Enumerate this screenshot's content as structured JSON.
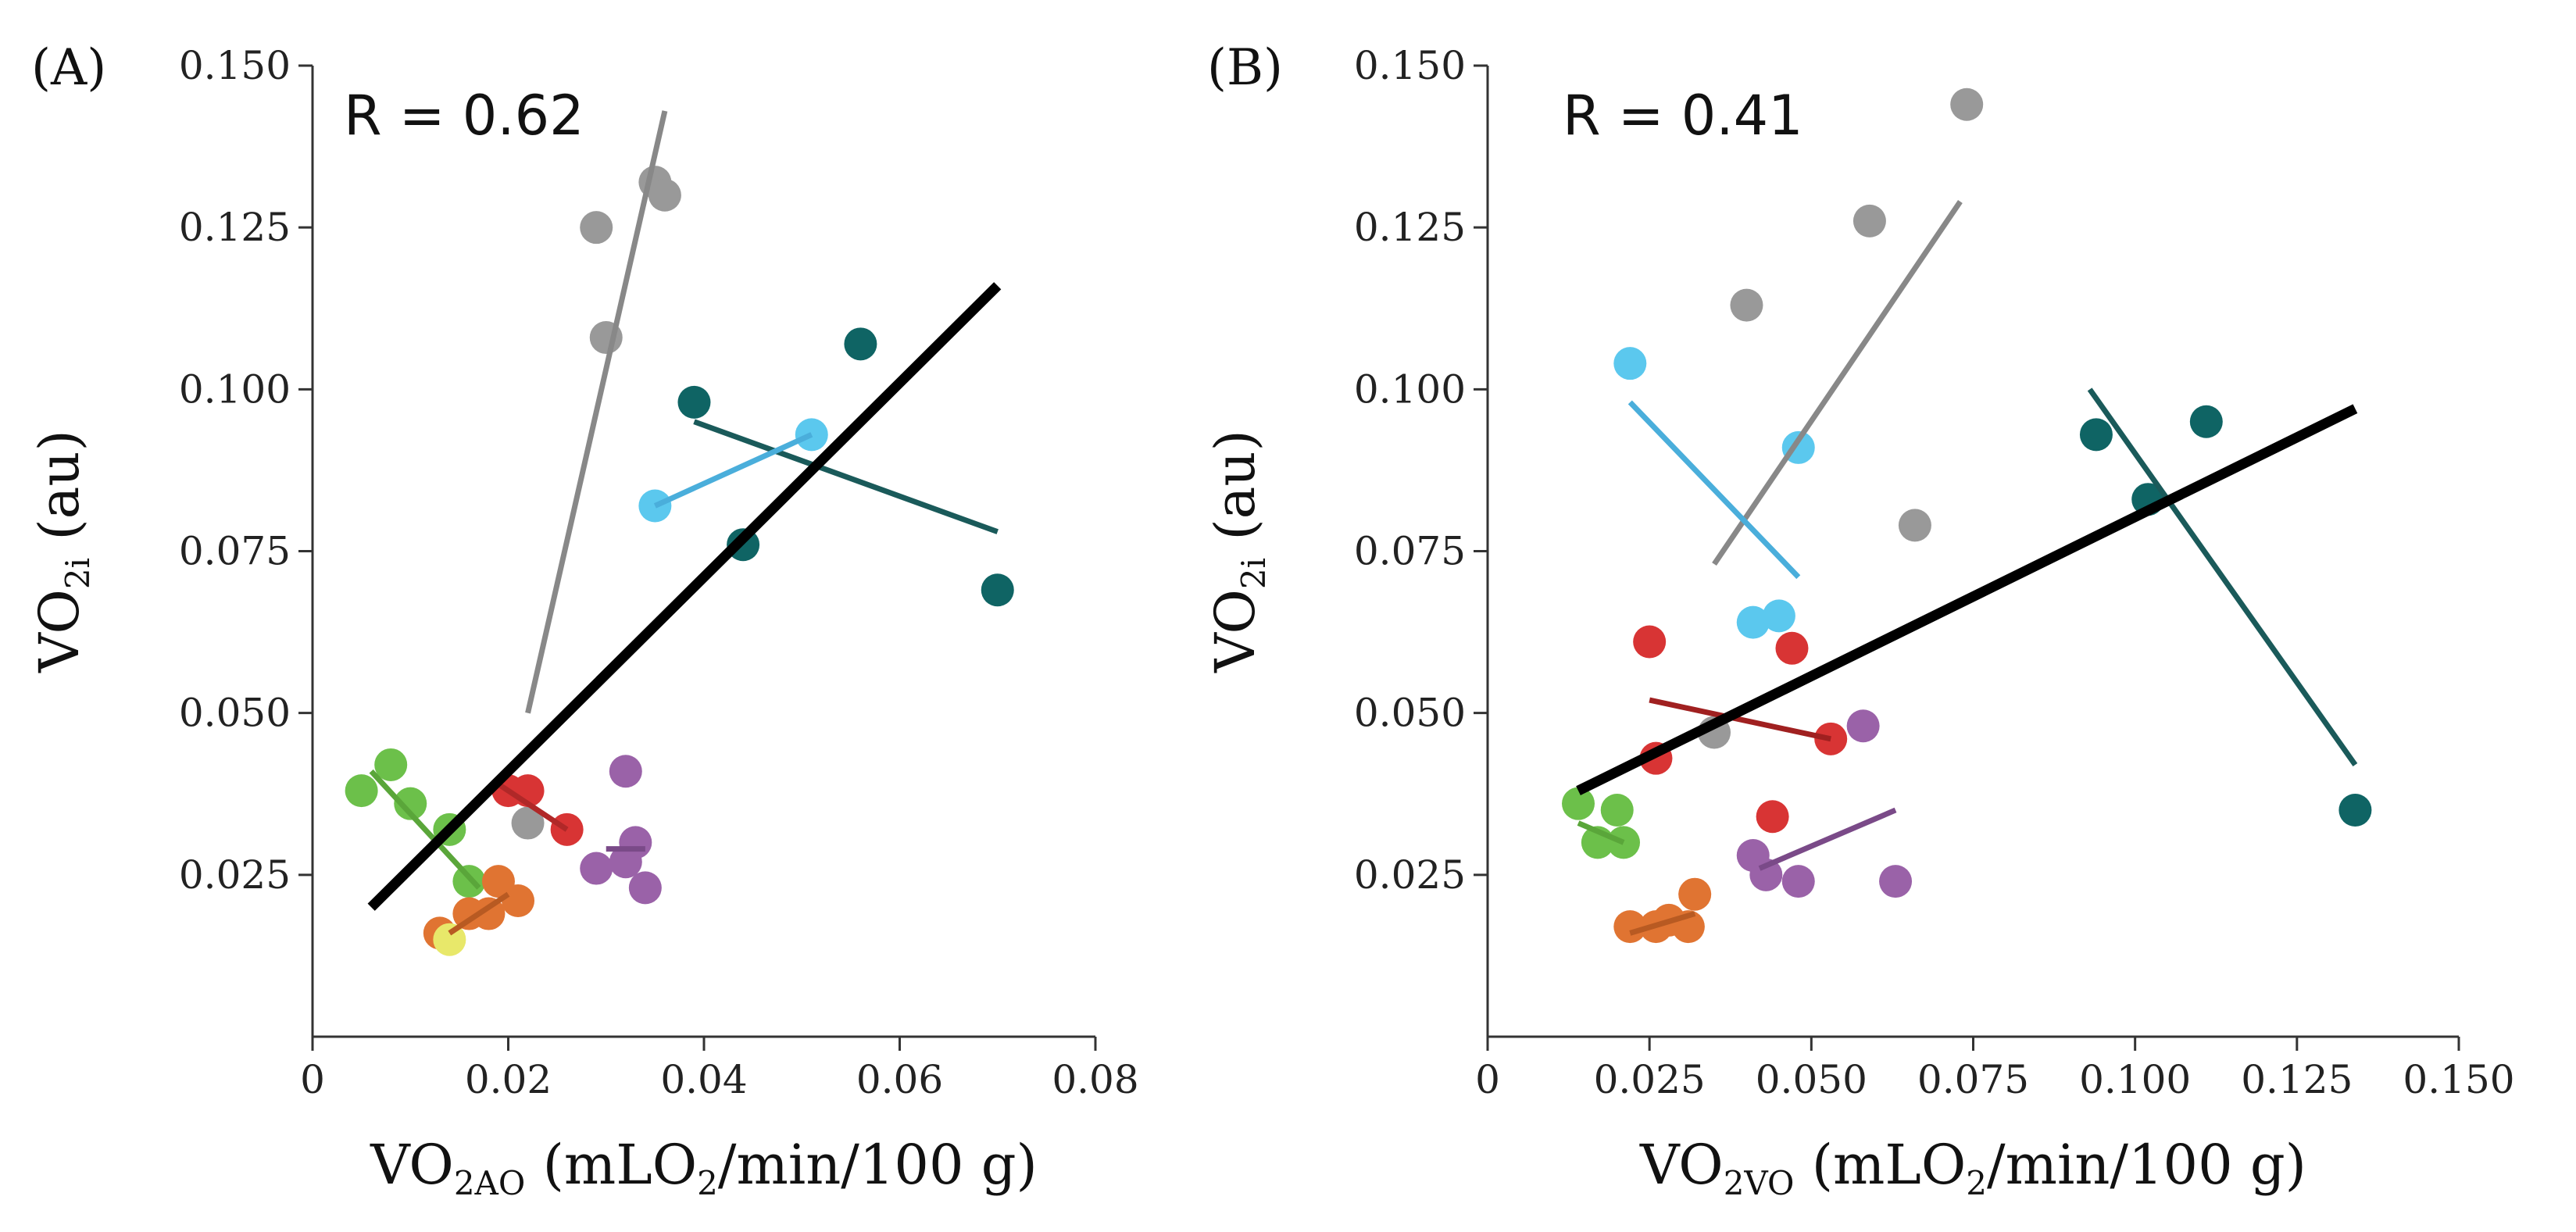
{
  "chart_data": [
    {
      "type": "scatter",
      "panel_label": "(A)",
      "annotation": "R = 0.62",
      "xlabel": {
        "main": "VO",
        "sub": "2AO",
        "rest": " (mLO",
        "sub2": "2",
        "tail": "/min/100 g)"
      },
      "ylabel": {
        "main": "VO",
        "sub": "2i",
        "rest": " (au)"
      },
      "xlim": [
        0,
        0.08
      ],
      "ylim": [
        0,
        0.15
      ],
      "xticks": [
        0,
        0.02,
        0.04,
        0.06,
        0.08
      ],
      "xtick_labels": [
        "0",
        "0.02",
        "0.04",
        "0.06",
        "0.08"
      ],
      "yticks": [
        0.025,
        0.05,
        0.075,
        0.1,
        0.125,
        0.15
      ],
      "ytick_labels": [
        "0.025",
        "0.050",
        "0.075",
        "0.100",
        "0.125",
        "0.150"
      ],
      "overall_fit": {
        "color": "#000000",
        "x": [
          0.006,
          0.07
        ],
        "y": [
          0.02,
          0.116
        ]
      },
      "series": [
        {
          "name": "gray",
          "color": "#999999",
          "line_color": "#888888",
          "points": [
            [
              0.029,
              0.125
            ],
            [
              0.03,
              0.108
            ],
            [
              0.035,
              0.132
            ],
            [
              0.036,
              0.13
            ],
            [
              0.022,
              0.033
            ]
          ],
          "fit": {
            "x": [
              0.022,
              0.036
            ],
            "y": [
              0.05,
              0.143
            ]
          }
        },
        {
          "name": "teal",
          "color": "#0f6464",
          "line_color": "#1a5a5a",
          "points": [
            [
              0.039,
              0.098
            ],
            [
              0.044,
              0.076
            ],
            [
              0.056,
              0.107
            ],
            [
              0.07,
              0.069
            ]
          ],
          "fit": {
            "x": [
              0.039,
              0.07
            ],
            "y": [
              0.095,
              0.078
            ]
          }
        },
        {
          "name": "lightblue",
          "color": "#5bc8ee",
          "line_color": "#4aaedb",
          "points": [
            [
              0.035,
              0.082
            ],
            [
              0.051,
              0.093
            ]
          ],
          "fit": {
            "x": [
              0.035,
              0.051
            ],
            "y": [
              0.082,
              0.093
            ]
          }
        },
        {
          "name": "green",
          "color": "#6cc04a",
          "line_color": "#5aa63a",
          "points": [
            [
              0.005,
              0.038
            ],
            [
              0.008,
              0.042
            ],
            [
              0.01,
              0.036
            ],
            [
              0.014,
              0.032
            ],
            [
              0.016,
              0.024
            ]
          ],
          "fit": {
            "x": [
              0.006,
              0.017
            ],
            "y": [
              0.041,
              0.023
            ]
          }
        },
        {
          "name": "red",
          "color": "#d83434",
          "line_color": "#b02828",
          "points": [
            [
              0.02,
              0.038
            ],
            [
              0.022,
              0.038
            ],
            [
              0.026,
              0.032
            ]
          ],
          "fit": {
            "x": [
              0.019,
              0.026
            ],
            "y": [
              0.039,
              0.032
            ]
          }
        },
        {
          "name": "orange",
          "color": "#e07432",
          "line_color": "#b85a22",
          "points": [
            [
              0.013,
              0.016
            ],
            [
              0.016,
              0.019
            ],
            [
              0.018,
              0.019
            ],
            [
              0.019,
              0.024
            ],
            [
              0.021,
              0.021
            ]
          ],
          "fit": {
            "x": [
              0.014,
              0.02
            ],
            "y": [
              0.016,
              0.022
            ]
          }
        },
        {
          "name": "yellow",
          "color": "#e8e86a",
          "line_color": "#cccc44",
          "points": [
            [
              0.014,
              0.015
            ]
          ],
          "fit": null
        },
        {
          "name": "purple",
          "color": "#9a62a8",
          "line_color": "#7a4a88",
          "points": [
            [
              0.029,
              0.026
            ],
            [
              0.032,
              0.041
            ],
            [
              0.032,
              0.027
            ],
            [
              0.033,
              0.03
            ],
            [
              0.034,
              0.023
            ]
          ],
          "fit": {
            "x": [
              0.03,
              0.034
            ],
            "y": [
              0.029,
              0.029
            ]
          }
        }
      ]
    },
    {
      "type": "scatter",
      "panel_label": "(B)",
      "annotation": "R = 0.41",
      "xlabel": {
        "main": "VO",
        "sub": "2VO",
        "rest": " (mLO",
        "sub2": "2",
        "tail": "/min/100 g)"
      },
      "ylabel": {
        "main": "VO",
        "sub": "2i",
        "rest": " (au)"
      },
      "xlim": [
        0,
        0.15
      ],
      "ylim": [
        0,
        0.15
      ],
      "xticks": [
        0,
        0.025,
        0.05,
        0.075,
        0.1,
        0.125,
        0.15
      ],
      "xtick_labels": [
        "0",
        "0.025",
        "0.050",
        "0.075",
        "0.100",
        "0.125",
        "0.150"
      ],
      "yticks": [
        0.025,
        0.05,
        0.075,
        0.1,
        0.125,
        0.15
      ],
      "ytick_labels": [
        "0.025",
        "0.050",
        "0.075",
        "0.100",
        "0.125",
        "0.150"
      ],
      "overall_fit": {
        "color": "#000000",
        "x": [
          0.014,
          0.134
        ],
        "y": [
          0.038,
          0.097
        ]
      },
      "series": [
        {
          "name": "gray",
          "color": "#999999",
          "line_color": "#888888",
          "points": [
            [
              0.074,
              0.144
            ],
            [
              0.059,
              0.126
            ],
            [
              0.04,
              0.113
            ],
            [
              0.066,
              0.079
            ],
            [
              0.035,
              0.047
            ]
          ],
          "fit": {
            "x": [
              0.035,
              0.073
            ],
            "y": [
              0.073,
              0.129
            ]
          }
        },
        {
          "name": "teal",
          "color": "#0f6464",
          "line_color": "#1a5a5a",
          "points": [
            [
              0.094,
              0.093
            ],
            [
              0.102,
              0.083
            ],
            [
              0.111,
              0.095
            ],
            [
              0.134,
              0.035
            ]
          ],
          "fit": {
            "x": [
              0.093,
              0.134
            ],
            "y": [
              0.1,
              0.042
            ]
          }
        },
        {
          "name": "lightblue",
          "color": "#5bc8ee",
          "line_color": "#4aaedb",
          "points": [
            [
              0.022,
              0.104
            ],
            [
              0.048,
              0.091
            ],
            [
              0.041,
              0.064
            ],
            [
              0.045,
              0.065
            ]
          ],
          "fit": {
            "x": [
              0.022,
              0.048
            ],
            "y": [
              0.098,
              0.071
            ]
          }
        },
        {
          "name": "green",
          "color": "#6cc04a",
          "line_color": "#5aa63a",
          "points": [
            [
              0.014,
              0.036
            ],
            [
              0.017,
              0.03
            ],
            [
              0.02,
              0.035
            ],
            [
              0.021,
              0.03
            ]
          ],
          "fit": {
            "x": [
              0.014,
              0.021
            ],
            "y": [
              0.033,
              0.03
            ]
          }
        },
        {
          "name": "red",
          "color": "#d83434",
          "line_color": "#a02020",
          "points": [
            [
              0.025,
              0.061
            ],
            [
              0.026,
              0.043
            ],
            [
              0.047,
              0.06
            ],
            [
              0.053,
              0.046
            ],
            [
              0.044,
              0.034
            ]
          ],
          "fit": {
            "x": [
              0.025,
              0.053
            ],
            "y": [
              0.052,
              0.046
            ]
          }
        },
        {
          "name": "orange",
          "color": "#e07432",
          "line_color": "#b85a22",
          "points": [
            [
              0.022,
              0.017
            ],
            [
              0.026,
              0.017
            ],
            [
              0.028,
              0.018
            ],
            [
              0.031,
              0.017
            ],
            [
              0.032,
              0.022
            ]
          ],
          "fit": {
            "x": [
              0.022,
              0.032
            ],
            "y": [
              0.016,
              0.019
            ]
          }
        },
        {
          "name": "purple",
          "color": "#9a62a8",
          "line_color": "#7a4a88",
          "points": [
            [
              0.041,
              0.028
            ],
            [
              0.043,
              0.025
            ],
            [
              0.048,
              0.024
            ],
            [
              0.058,
              0.048
            ],
            [
              0.063,
              0.024
            ]
          ],
          "fit": {
            "x": [
              0.042,
              0.063
            ],
            "y": [
              0.026,
              0.035
            ]
          }
        }
      ]
    }
  ]
}
